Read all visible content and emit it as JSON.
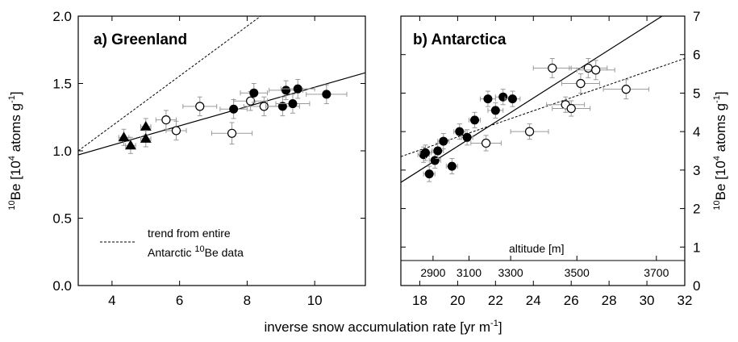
{
  "xlabel_main": "inverse snow accumulation rate [yr m",
  "xlabel_sup": "-1",
  "xlabel_end": "]",
  "ylabel_pre": "10",
  "ylabel_main": "Be [10",
  "ylabel_sup": "4",
  "ylabel_end": " atoms g",
  "ylabel_sup2": "-1",
  "ylabel_close": "]",
  "legend": {
    "line1": "trend from entire",
    "line2_pre": "Antarctic ",
    "line2_sup": "10",
    "line2_post": "Be data"
  },
  "altitude_label": "altitude [m]",
  "chart_data": [
    {
      "type": "scatter",
      "title": "a) Greenland",
      "xlim": [
        3,
        11.5
      ],
      "ylim": [
        0.0,
        2.0
      ],
      "xticks": [
        4,
        6,
        8,
        10
      ],
      "yticks": [
        0.0,
        0.5,
        1.0,
        1.5,
        2.0
      ],
      "ytick_labels": [
        "0.0",
        "0.5",
        "1.0",
        "1.5",
        "2.0"
      ],
      "grid": false,
      "series": [
        {
          "marker": "triangle",
          "points": [
            {
              "x": 4.35,
              "y": 1.1,
              "xerr": 0.15,
              "yerr": 0.06
            },
            {
              "x": 4.55,
              "y": 1.04,
              "xerr": 0.15,
              "yerr": 0.06
            },
            {
              "x": 5.0,
              "y": 1.18,
              "xerr": 0.15,
              "yerr": 0.06
            },
            {
              "x": 5.0,
              "y": 1.09,
              "xerr": 0.15,
              "yerr": 0.06
            }
          ]
        },
        {
          "marker": "open-circle",
          "points": [
            {
              "x": 5.6,
              "y": 1.23,
              "xerr": 0.3,
              "yerr": 0.07
            },
            {
              "x": 5.9,
              "y": 1.15,
              "xerr": 0.3,
              "yerr": 0.07
            },
            {
              "x": 6.6,
              "y": 1.33,
              "xerr": 0.5,
              "yerr": 0.07
            },
            {
              "x": 7.55,
              "y": 1.13,
              "xerr": 0.6,
              "yerr": 0.08
            },
            {
              "x": 8.1,
              "y": 1.37,
              "xerr": 0.5,
              "yerr": 0.07
            },
            {
              "x": 8.5,
              "y": 1.33,
              "xerr": 0.6,
              "yerr": 0.07
            }
          ]
        },
        {
          "marker": "filled-circle",
          "points": [
            {
              "x": 7.6,
              "y": 1.31,
              "xerr": 0.4,
              "yerr": 0.07
            },
            {
              "x": 8.2,
              "y": 1.43,
              "xerr": 0.4,
              "yerr": 0.07
            },
            {
              "x": 9.05,
              "y": 1.33,
              "xerr": 0.5,
              "yerr": 0.07
            },
            {
              "x": 9.15,
              "y": 1.45,
              "xerr": 0.5,
              "yerr": 0.07
            },
            {
              "x": 9.35,
              "y": 1.35,
              "xerr": 0.5,
              "yerr": 0.07
            },
            {
              "x": 9.5,
              "y": 1.46,
              "xerr": 0.5,
              "yerr": 0.07
            },
            {
              "x": 10.35,
              "y": 1.42,
              "xerr": 0.6,
              "yerr": 0.07
            }
          ]
        }
      ],
      "fit_line": {
        "x": [
          3,
          11.5
        ],
        "y": [
          0.97,
          1.58
        ],
        "style": "solid"
      },
      "trend_line": {
        "x": [
          3,
          8.4
        ],
        "y": [
          1.0,
          2.0
        ],
        "style": "dashed"
      }
    },
    {
      "type": "scatter",
      "title": "b) Antarctica",
      "xlim": [
        17,
        32
      ],
      "ylim": [
        0,
        7
      ],
      "xticks": [
        18,
        20,
        22,
        24,
        26,
        28,
        30,
        32
      ],
      "yticks": [
        0,
        1,
        2,
        3,
        4,
        5,
        6,
        7
      ],
      "y_axis_side": "right",
      "grid": false,
      "altitude_ticks": [
        {
          "x": 18.7,
          "label": "2900"
        },
        {
          "x": 20.6,
          "label": "3100"
        },
        {
          "x": 22.8,
          "label": "3300"
        },
        {
          "x": 26.3,
          "label": "3500"
        },
        {
          "x": 30.5,
          "label": "3700"
        }
      ],
      "series": [
        {
          "marker": "filled-circle",
          "points": [
            {
              "x": 18.2,
              "y": 3.4,
              "xerr": 0.3,
              "yerr": 0.2
            },
            {
              "x": 18.3,
              "y": 3.45,
              "xerr": 0.3,
              "yerr": 0.2
            },
            {
              "x": 18.5,
              "y": 2.9,
              "xerr": 0.3,
              "yerr": 0.2
            },
            {
              "x": 18.8,
              "y": 3.25,
              "xerr": 0.3,
              "yerr": 0.2
            },
            {
              "x": 18.95,
              "y": 3.5,
              "xerr": 0.3,
              "yerr": 0.2
            },
            {
              "x": 19.25,
              "y": 3.75,
              "xerr": 0.3,
              "yerr": 0.2
            },
            {
              "x": 19.7,
              "y": 3.1,
              "xerr": 0.3,
              "yerr": 0.2
            },
            {
              "x": 20.1,
              "y": 4.0,
              "xerr": 0.3,
              "yerr": 0.2
            },
            {
              "x": 20.5,
              "y": 3.85,
              "xerr": 0.3,
              "yerr": 0.2
            },
            {
              "x": 20.9,
              "y": 4.3,
              "xerr": 0.3,
              "yerr": 0.2
            },
            {
              "x": 21.6,
              "y": 4.85,
              "xerr": 0.4,
              "yerr": 0.2
            },
            {
              "x": 22.0,
              "y": 4.55,
              "xerr": 0.4,
              "yerr": 0.2
            },
            {
              "x": 22.4,
              "y": 4.9,
              "xerr": 0.4,
              "yerr": 0.2
            },
            {
              "x": 22.9,
              "y": 4.85,
              "xerr": 0.4,
              "yerr": 0.2
            }
          ]
        },
        {
          "marker": "open-circle",
          "points": [
            {
              "x": 21.5,
              "y": 3.7,
              "xerr": 0.8,
              "yerr": 0.2
            },
            {
              "x": 23.8,
              "y": 4.0,
              "xerr": 1.0,
              "yerr": 0.2
            },
            {
              "x": 25.0,
              "y": 5.65,
              "xerr": 1.0,
              "yerr": 0.25
            },
            {
              "x": 25.7,
              "y": 4.7,
              "xerr": 1.0,
              "yerr": 0.2
            },
            {
              "x": 26.0,
              "y": 4.6,
              "xerr": 1.0,
              "yerr": 0.2
            },
            {
              "x": 26.5,
              "y": 5.25,
              "xerr": 1.0,
              "yerr": 0.25
            },
            {
              "x": 26.9,
              "y": 5.65,
              "xerr": 1.0,
              "yerr": 0.25
            },
            {
              "x": 27.3,
              "y": 5.6,
              "xerr": 1.0,
              "yerr": 0.25
            },
            {
              "x": 28.9,
              "y": 5.1,
              "xerr": 1.2,
              "yerr": 0.25
            }
          ]
        }
      ],
      "fit_line": {
        "x": [
          17,
          30.8
        ],
        "y": [
          2.68,
          7.0
        ],
        "style": "solid"
      },
      "trend_line": {
        "x": [
          17,
          32
        ],
        "y": [
          3.35,
          5.9
        ],
        "style": "dashed"
      }
    }
  ]
}
